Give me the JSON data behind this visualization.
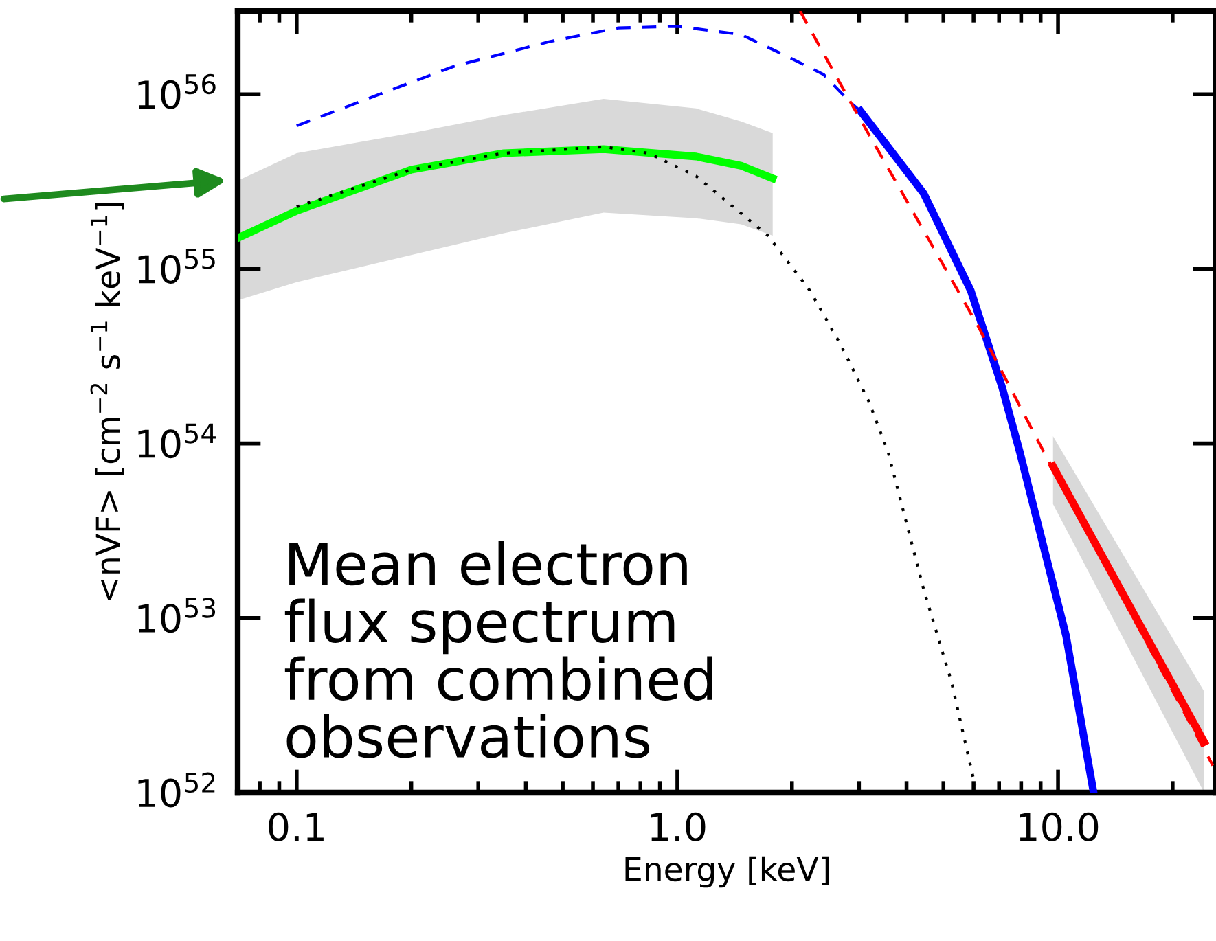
{
  "chart_data": {
    "type": "line",
    "xlabel": "Energy [keV]",
    "ylabel": "<nVF> [cm$^{−2}$ s$^{−1}$ keV$^{−1}$]",
    "log": "xy",
    "xlim": [
      0.07,
      26
    ],
    "ylim": [
      1e+52,
      3e+56
    ],
    "xticks": [
      {
        "value": 0.1,
        "label": "0.1"
      },
      {
        "value": 1,
        "label": "1.0"
      },
      {
        "value": 10,
        "label": "10.0"
      }
    ],
    "yticks": [
      {
        "value": 1e+52,
        "label": "10$^{52}$"
      },
      {
        "value": 1e+53,
        "label": "10$^{53}$"
      },
      {
        "value": 1e+54,
        "label": "10$^{54}$"
      },
      {
        "value": 1e+55,
        "label": "10$^{55}$"
      },
      {
        "value": 1e+56,
        "label": "10$^{56}$"
      }
    ],
    "grid": false,
    "legend": false,
    "annotations": [
      "Mean electron\nflux spectrum\nfrom combined\nobservations"
    ],
    "series": [
      {
        "color": "#00ff00",
        "line_style": "solid",
        "x": [
          0.07,
          0.1,
          0.2,
          0.35,
          0.64,
          1.12,
          1.47,
          1.78
        ],
        "values": [
          1.5e+55,
          2.15e+55,
          3.7e+55,
          4.6e+55,
          4.85e+55,
          4.4e+55,
          3.9e+55,
          3.3e+55
        ],
        "lower": [
          6.6e+54,
          8.4e+54,
          1.2e+55,
          1.6e+55,
          2.1e+55,
          1.95e+55,
          1.8e+55,
          1.55e+55
        ],
        "upper": [
          3.2e+55,
          4.6e+55,
          6e+55,
          7.6e+55,
          9.4e+55,
          8.3e+55,
          7e+55,
          6e+55
        ]
      },
      {
        "color": "#000000",
        "line_style": "dotted",
        "x": [
          0.1,
          0.2,
          0.35,
          0.64,
          0.84,
          1.12,
          1.73,
          2.23,
          2.7,
          3.18,
          3.58,
          4.44,
          5.25,
          6.05
        ],
        "values": [
          2.27e+55,
          3.7e+55,
          4.6e+55,
          5e+55,
          4.6e+55,
          3.4e+55,
          1.55e+55,
          7.5e+54,
          3.6e+54,
          1.75e+54,
          8.9e+53,
          1.45e+53,
          4.3e+52,
          1.1e+52
        ]
      },
      {
        "color": "#0000ff",
        "line_style": "dashed",
        "x": [
          0.1,
          0.165,
          0.26,
          0.46,
          0.7,
          1.0,
          1.47,
          1.94,
          2.42,
          2.86,
          3.03
        ],
        "values": [
          6.6e+55,
          1e+56,
          1.45e+56,
          2e+56,
          2.4e+56,
          2.45e+56,
          2.2e+56,
          1.65e+56,
          1.3e+56,
          8.9e+55,
          8e+55
        ]
      },
      {
        "color": "#0000ff",
        "line_style": "solid",
        "x": [
          3.03,
          4.44,
          5.9,
          7.13,
          7.94,
          9.15,
          10.5,
          12.4
        ],
        "values": [
          8e+55,
          2.7e+55,
          7.5e+54,
          2.1e+54,
          8.9e+53,
          2.6e+53,
          7.9e+52,
          1e+52
        ]
      },
      {
        "color": "#ff0000",
        "line_style": "dashed",
        "x": [
          2.1,
          2.86,
          6.2,
          8.93,
          25.5
        ],
        "values": [
          3e+56,
          8.9e+55,
          4.6e+54,
          1e+54,
          1.43e+52
        ]
      },
      {
        "color": "#ff0000",
        "line_style": "solid",
        "x": [
          9.7,
          24.2
        ],
        "values": [
          7.4e+53,
          1.95e+52
        ],
        "lower": [
          4.5e+53,
          1e+52
        ],
        "upper": [
          1.1e+54,
          3.8e+52
        ]
      }
    ]
  }
}
